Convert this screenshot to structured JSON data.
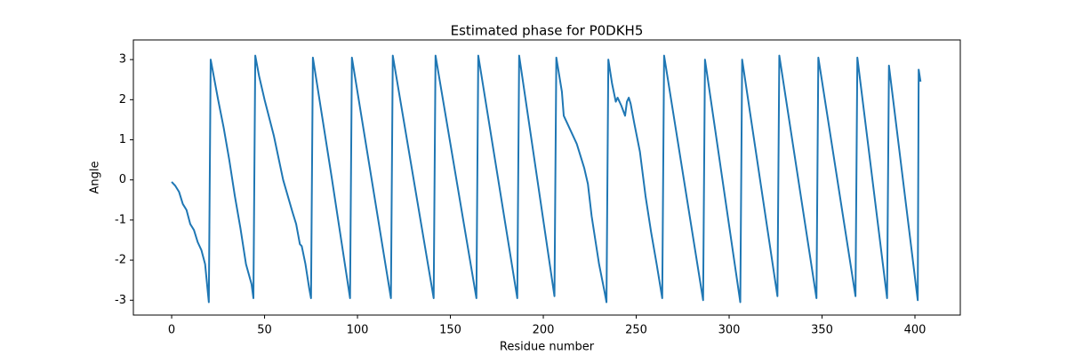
{
  "chart_data": {
    "type": "line",
    "title": "Estimated phase for P0DKH5",
    "x_label": "Residue number",
    "y_label": "Angle",
    "x": [
      0,
      2,
      4,
      6,
      8,
      10,
      12,
      14,
      16,
      18,
      20,
      21,
      22,
      25,
      28,
      31,
      34,
      37,
      40,
      43,
      44,
      45,
      47,
      50,
      55,
      60,
      65,
      67,
      69,
      70,
      72,
      74,
      75,
      76,
      86,
      96,
      97,
      118,
      119,
      141,
      142,
      164,
      165,
      186,
      187,
      206,
      207,
      210,
      211,
      213,
      218,
      222,
      224,
      226,
      228,
      230,
      233,
      234,
      235,
      237,
      239,
      240,
      242,
      244,
      245,
      246,
      247,
      249,
      252,
      255,
      258,
      261,
      264,
      265,
      286,
      287,
      306,
      307,
      326,
      327,
      347,
      348,
      368,
      369,
      385,
      386,
      401.5,
      402,
      403
    ],
    "series": [
      {
        "name": "phase",
        "color": "#1f77b4",
        "values": [
          -0.05,
          -0.15,
          -0.3,
          -0.6,
          -0.75,
          -1.1,
          -1.25,
          -1.55,
          -1.75,
          -2.1,
          -3.05,
          3.0,
          2.75,
          2.0,
          1.3,
          0.5,
          -0.4,
          -1.2,
          -2.1,
          -2.6,
          -2.95,
          3.1,
          2.6,
          2.0,
          1.1,
          0.0,
          -0.8,
          -1.1,
          -1.6,
          -1.65,
          -2.1,
          -2.7,
          -2.95,
          3.05,
          0.1,
          -2.95,
          3.05,
          -2.95,
          3.1,
          -2.95,
          3.1,
          -2.95,
          3.1,
          -2.95,
          3.1,
          -2.9,
          3.05,
          2.2,
          1.6,
          1.4,
          0.9,
          0.3,
          -0.1,
          -0.9,
          -1.5,
          -2.1,
          -2.8,
          -3.05,
          3.0,
          2.4,
          1.95,
          2.05,
          1.85,
          1.6,
          1.95,
          2.05,
          1.9,
          1.4,
          0.7,
          -0.4,
          -1.3,
          -2.1,
          -2.95,
          3.1,
          -3.0,
          3.0,
          -3.05,
          3.0,
          -2.9,
          3.1,
          -2.95,
          3.05,
          -2.9,
          3.05,
          -2.95,
          2.85,
          -3.0,
          2.75,
          2.45
        ]
      }
    ],
    "xlim": [
      -20.6,
      424.4
    ],
    "ylim": [
      -3.37,
      3.49
    ],
    "xticks": [
      0,
      50,
      100,
      150,
      200,
      250,
      300,
      350,
      400
    ],
    "yticks": [
      -3,
      -2,
      -1,
      0,
      1,
      2,
      3
    ]
  }
}
